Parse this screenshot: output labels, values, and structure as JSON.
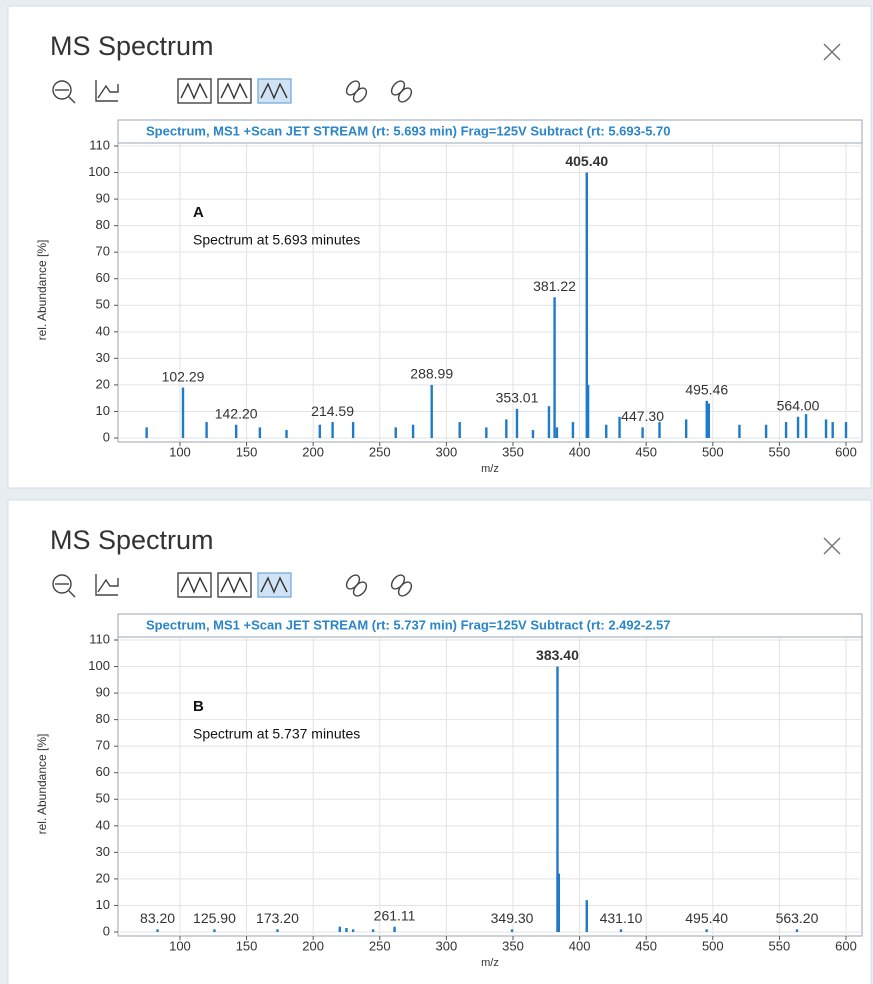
{
  "chart_data": [
    {
      "type": "bar",
      "window_title": "MS Spectrum",
      "title": "Spectrum, MS1 +Scan JET STREAM (rt: 5.693 min) Frag=125V Subtract (rt: 5.693-5.70",
      "annotation_label": "A",
      "annotation_text": "Spectrum at 5.693 minutes",
      "x_label": "m/z",
      "y_label": "rel. Abundance [%]",
      "color": "#1f7bc8",
      "grid": true,
      "xlim": [
        55,
        612
      ],
      "ylim": [
        0,
        110
      ],
      "xticks": [
        100,
        150,
        200,
        250,
        300,
        350,
        400,
        450,
        500,
        550,
        600
      ],
      "yticks": [
        0,
        10,
        20,
        30,
        40,
        50,
        60,
        70,
        80,
        90,
        100,
        110
      ],
      "x": [
        405.4,
        381.22,
        288.99,
        102.29,
        353.01,
        495.46,
        564.0,
        142.2,
        214.59,
        447.3,
        406.4,
        377,
        383,
        395,
        430,
        497,
        520,
        570,
        585,
        590,
        75,
        120,
        160,
        180,
        205,
        230,
        262,
        275,
        310,
        330,
        345,
        365,
        420,
        460,
        480,
        540,
        555,
        600
      ],
      "values": [
        100,
        53,
        20,
        19,
        11,
        14,
        8,
        5,
        6,
        4,
        20,
        12,
        4,
        6,
        8,
        13,
        5,
        9,
        7,
        6,
        4,
        6,
        4,
        3,
        5,
        6,
        4,
        5,
        6,
        4,
        7,
        3,
        5,
        6,
        7,
        5,
        6,
        6
      ],
      "x_labels": [
        "405.40",
        "381.22",
        "288.99",
        "102.29",
        "353.01",
        "495.46",
        "564.00",
        "142.20",
        "214.59",
        "447.30",
        null,
        null,
        null,
        null,
        null,
        null,
        null,
        null,
        null,
        null,
        null,
        null,
        null,
        null,
        null,
        null,
        null,
        null,
        null,
        null,
        null,
        null,
        null,
        null,
        null,
        null,
        null,
        null
      ]
    },
    {
      "type": "bar",
      "window_title": "MS Spectrum",
      "title": "Spectrum, MS1 +Scan JET STREAM (rt: 5.737 min) Frag=125V Subtract (rt: 2.492-2.57",
      "annotation_label": "B",
      "annotation_text": "Spectrum at 5.737 minutes",
      "x_label": "m/z",
      "y_label": "rel. Abundance [%]",
      "color": "#1f7bc8",
      "grid": true,
      "xlim": [
        55,
        612
      ],
      "ylim": [
        0,
        110
      ],
      "xticks": [
        100,
        150,
        200,
        250,
        300,
        350,
        400,
        450,
        500,
        550,
        600
      ],
      "yticks": [
        0,
        10,
        20,
        30,
        40,
        50,
        60,
        70,
        80,
        90,
        100,
        110
      ],
      "x": [
        383.4,
        384.4,
        405.4,
        83.2,
        125.9,
        173.2,
        261.11,
        349.3,
        431.1,
        495.4,
        563.2,
        220,
        225,
        230,
        245
      ],
      "values": [
        100,
        22,
        12,
        1,
        1,
        1,
        2,
        1,
        1,
        1,
        1,
        2,
        1.5,
        1,
        1
      ],
      "x_labels": [
        "383.40",
        null,
        null,
        "83.20",
        "125.90",
        "173.20",
        "261.11",
        "349.30",
        "431.10",
        "495.40",
        "563.20",
        null,
        null,
        null,
        null
      ]
    }
  ]
}
